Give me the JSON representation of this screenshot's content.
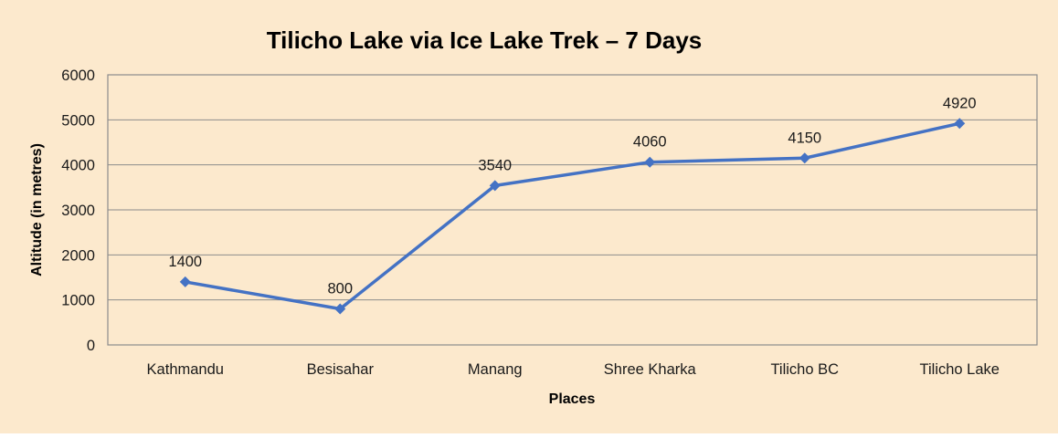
{
  "colors": {
    "background": "#FCE9CD",
    "line": "#4472C4",
    "marker": "#4472C4",
    "gridline": "#8C8C8C",
    "plot_border": "#8C8C8C",
    "text": "#1A1A1A"
  },
  "chart_data": {
    "type": "line",
    "title": "Tilicho Lake via Ice Lake Trek – 7 Days",
    "xlabel": "Places",
    "ylabel": "Altitude (in metres)",
    "categories": [
      "Kathmandu",
      "Besisahar",
      "Manang",
      "Shree Kharka",
      "Tilicho BC",
      "Tilicho Lake"
    ],
    "values": [
      1400,
      800,
      3540,
      4060,
      4150,
      4920
    ],
    "data_labels": [
      "1400",
      "800",
      "3540",
      "4060",
      "4150",
      "4920"
    ],
    "ylim": [
      0,
      6000
    ],
    "yticks": [
      0,
      1000,
      2000,
      3000,
      4000,
      5000,
      6000
    ],
    "ytick_labels": [
      "0",
      "1000",
      "2000",
      "3000",
      "4000",
      "5000",
      "6000"
    ],
    "grid": true,
    "legend": false,
    "marker_shape": "diamond"
  }
}
